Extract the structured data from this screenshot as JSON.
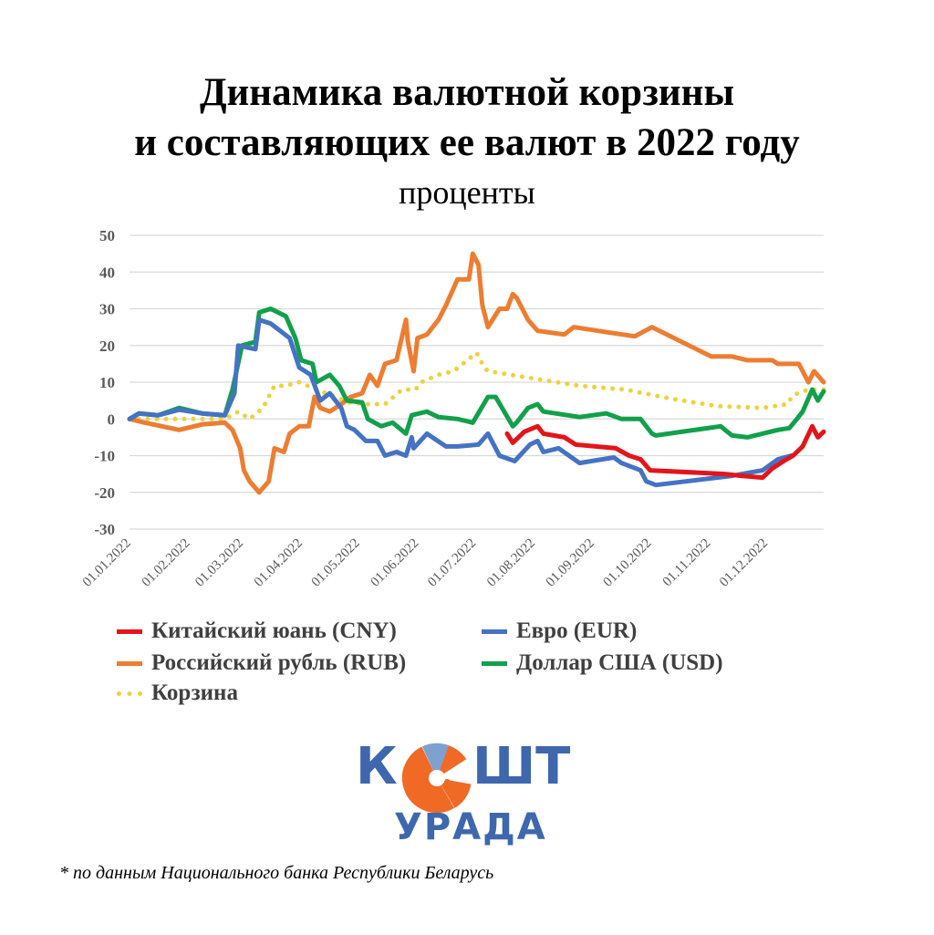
{
  "title_line1": "Динамика валютной корзины",
  "title_line2": "и составляющих ее валют в 2022 году",
  "subtitle": "проценты",
  "colors": {
    "CNY": "#e3151a",
    "EUR": "#4472c4",
    "RUB": "#ed7d31",
    "USD": "#12a04b",
    "basket": "#f0d13c",
    "grid": "#d9d9d9",
    "text": "#595959",
    "logo_blue": "#3e67ad",
    "logo_orange": "#f06a25"
  },
  "chart_data": {
    "type": "line",
    "title": "Динамика валютной корзины и составляющих ее валют в 2022 году",
    "ylabel": "проценты",
    "ylim": [
      -30,
      50
    ],
    "yticks": [
      "50",
      "40",
      "30",
      "20",
      "10",
      "0",
      "-10",
      "-20",
      "-30"
    ],
    "xlim": [
      "01.01.2022",
      "31.12.2022"
    ],
    "xticks": [
      "01.01.2022",
      "01.02.2022",
      "01.03.2022",
      "01.04.2022",
      "01.05.2022",
      "01.06.2022",
      "01.07.2022",
      "01.08.2022",
      "01.09.2022",
      "01.10.2022",
      "01.11.2022",
      "01.12.2022"
    ],
    "grid": true,
    "legend_position": "bottom",
    "series": [
      {
        "name": "Китайский юань (CNY)",
        "key": "CNY",
        "style": "solid",
        "points": [
          [
            "18.07.2022",
            -4
          ],
          [
            "21.07.2022",
            -6.5
          ],
          [
            "27.07.2022",
            -3.5
          ],
          [
            "03.08.2022",
            -2
          ],
          [
            "06.08.2022",
            -4
          ],
          [
            "17.08.2022",
            -5
          ],
          [
            "23.08.2022",
            -7
          ],
          [
            "13.09.2022",
            -8
          ],
          [
            "20.09.2022",
            -10
          ],
          [
            "26.09.2022",
            -11
          ],
          [
            "01.10.2022",
            -14
          ],
          [
            "09.11.2022",
            -15
          ],
          [
            "18.11.2022",
            -15.5
          ],
          [
            "29.11.2022",
            -16
          ],
          [
            "04.12.2022",
            -13.5
          ],
          [
            "10.12.2022",
            -11.5
          ],
          [
            "15.12.2022",
            -10
          ],
          [
            "20.12.2022",
            -7.5
          ],
          [
            "25.12.2022",
            -2
          ],
          [
            "28.12.2022",
            -5
          ],
          [
            "31.12.2022",
            -3.5
          ]
        ]
      },
      {
        "name": "Евро (EUR)",
        "key": "EUR",
        "style": "solid",
        "points": [
          [
            "01.01.2022",
            0
          ],
          [
            "06.01.2022",
            1.5
          ],
          [
            "16.01.2022",
            1
          ],
          [
            "27.01.2022",
            2.5
          ],
          [
            "08.02.2022",
            1.5
          ],
          [
            "20.02.2022",
            1
          ],
          [
            "25.02.2022",
            7
          ],
          [
            "27.02.2022",
            20
          ],
          [
            "08.03.2022",
            19
          ],
          [
            "10.03.2022",
            27
          ],
          [
            "16.03.2022",
            26
          ],
          [
            "26.03.2022",
            22
          ],
          [
            "31.03.2022",
            14
          ],
          [
            "06.04.2022",
            12
          ],
          [
            "11.04.2022",
            5
          ],
          [
            "16.04.2022",
            7
          ],
          [
            "22.04.2022",
            3
          ],
          [
            "25.04.2022",
            -2
          ],
          [
            "29.04.2022",
            -3
          ],
          [
            "05.05.2022",
            -6
          ],
          [
            "11.05.2022",
            -6
          ],
          [
            "15.05.2022",
            -10
          ],
          [
            "21.05.2022",
            -9
          ],
          [
            "26.05.2022",
            -10
          ],
          [
            "29.05.2022",
            -5
          ],
          [
            "30.05.2022",
            -8
          ],
          [
            "06.06.2022",
            -4
          ],
          [
            "16.06.2022",
            -7.5
          ],
          [
            "22.06.2022",
            -7.5
          ],
          [
            "03.07.2022",
            -7
          ],
          [
            "08.07.2022",
            -4
          ],
          [
            "14.07.2022",
            -10
          ],
          [
            "22.07.2022",
            -11.5
          ],
          [
            "30.07.2022",
            -7
          ],
          [
            "03.08.2022",
            -6
          ],
          [
            "06.08.2022",
            -9
          ],
          [
            "14.08.2022",
            -8
          ],
          [
            "25.08.2022",
            -12
          ],
          [
            "12.09.2022",
            -10.5
          ],
          [
            "16.09.2022",
            -12
          ],
          [
            "26.09.2022",
            -14
          ],
          [
            "29.09.2022",
            -17
          ],
          [
            "04.10.2022",
            -18
          ],
          [
            "13.11.2022",
            -15.5
          ],
          [
            "29.11.2022",
            -14
          ],
          [
            "07.12.2022",
            -11
          ],
          [
            "14.12.2022",
            -10
          ]
        ]
      },
      {
        "name": "Российский рубль (RUB)",
        "key": "RUB",
        "style": "solid",
        "points": [
          [
            "01.01.2022",
            0
          ],
          [
            "09.01.2022",
            -1
          ],
          [
            "27.01.2022",
            -3
          ],
          [
            "08.02.2022",
            -1.5
          ],
          [
            "20.02.2022",
            -1
          ],
          [
            "24.02.2022",
            -3
          ],
          [
            "28.02.2022",
            -8
          ],
          [
            "02.03.2022",
            -14
          ],
          [
            "05.03.2022",
            -17
          ],
          [
            "10.03.2022",
            -20
          ],
          [
            "15.03.2022",
            -17
          ],
          [
            "18.03.2022",
            -8
          ],
          [
            "23.03.2022",
            -9
          ],
          [
            "26.03.2022",
            -4
          ],
          [
            "31.03.2022",
            -2
          ],
          [
            "05.04.2022",
            -2
          ],
          [
            "08.04.2022",
            6
          ],
          [
            "11.04.2022",
            3
          ],
          [
            "16.04.2022",
            2
          ],
          [
            "22.04.2022",
            4
          ],
          [
            "27.04.2022",
            6
          ],
          [
            "03.05.2022",
            7
          ],
          [
            "07.05.2022",
            12
          ],
          [
            "11.05.2022",
            9
          ],
          [
            "15.05.2022",
            15
          ],
          [
            "21.05.2022",
            16
          ],
          [
            "26.05.2022",
            27
          ],
          [
            "27.05.2022",
            21
          ],
          [
            "30.05.2022",
            13
          ],
          [
            "01.06.2022",
            22
          ],
          [
            "06.06.2022",
            23
          ],
          [
            "12.06.2022",
            27
          ],
          [
            "16.06.2022",
            31
          ],
          [
            "22.06.2022",
            38
          ],
          [
            "28.06.2022",
            38
          ],
          [
            "30.06.2022",
            45
          ],
          [
            "03.07.2022",
            42
          ],
          [
            "05.07.2022",
            31
          ],
          [
            "08.07.2022",
            25
          ],
          [
            "14.07.2022",
            30
          ],
          [
            "18.07.2022",
            30
          ],
          [
            "21.07.2022",
            34
          ],
          [
            "23.07.2022",
            33
          ],
          [
            "29.07.2022",
            27
          ],
          [
            "03.08.2022",
            24
          ],
          [
            "17.08.2022",
            23
          ],
          [
            "22.08.2022",
            25
          ],
          [
            "10.09.2022",
            23.5
          ],
          [
            "23.09.2022",
            22.5
          ],
          [
            "02.10.2022",
            25
          ],
          [
            "02.11.2022",
            17
          ],
          [
            "13.11.2022",
            17
          ],
          [
            "21.11.2022",
            16
          ],
          [
            "04.12.2022",
            16
          ],
          [
            "07.12.2022",
            15
          ],
          [
            "18.12.2022",
            15
          ],
          [
            "23.12.2022",
            10
          ],
          [
            "26.12.2022",
            13
          ],
          [
            "31.12.2022",
            10
          ]
        ]
      },
      {
        "name": "Доллар США (USD)",
        "key": "USD",
        "style": "solid",
        "points": [
          [
            "01.01.2022",
            0
          ],
          [
            "06.01.2022",
            1.5
          ],
          [
            "16.01.2022",
            1
          ],
          [
            "27.01.2022",
            3
          ],
          [
            "08.02.2022",
            1.5
          ],
          [
            "20.02.2022",
            1
          ],
          [
            "24.02.2022",
            8
          ],
          [
            "01.03.2022",
            20
          ],
          [
            "08.03.2022",
            21
          ],
          [
            "10.03.2022",
            29
          ],
          [
            "16.03.2022",
            30
          ],
          [
            "24.03.2022",
            28
          ],
          [
            "29.03.2022",
            22
          ],
          [
            "01.04.2022",
            16
          ],
          [
            "07.04.2022",
            15
          ],
          [
            "09.04.2022",
            10
          ],
          [
            "16.04.2022",
            12
          ],
          [
            "21.04.2022",
            9
          ],
          [
            "25.04.2022",
            5
          ],
          [
            "03.05.2022",
            4.5
          ],
          [
            "06.05.2022",
            0
          ],
          [
            "13.05.2022",
            -2
          ],
          [
            "19.05.2022",
            -1
          ],
          [
            "26.05.2022",
            -4
          ],
          [
            "29.05.2022",
            1
          ],
          [
            "06.06.2022",
            2
          ],
          [
            "12.06.2022",
            0.5
          ],
          [
            "22.06.2022",
            0
          ],
          [
            "30.06.2022",
            -1
          ],
          [
            "08.07.2022",
            6
          ],
          [
            "12.07.2022",
            6
          ],
          [
            "21.07.2022",
            -2
          ],
          [
            "23.07.2022",
            -1
          ],
          [
            "29.07.2022",
            3
          ],
          [
            "03.08.2022",
            4
          ],
          [
            "06.08.2022",
            2
          ],
          [
            "25.08.2022",
            0.5
          ],
          [
            "08.09.2022",
            1.5
          ],
          [
            "16.09.2022",
            0
          ],
          [
            "26.09.2022",
            0
          ],
          [
            "02.10.2022",
            -4
          ],
          [
            "04.10.2022",
            -4.5
          ],
          [
            "07.11.2022",
            -2
          ],
          [
            "13.11.2022",
            -4.5
          ],
          [
            "21.11.2022",
            -5
          ],
          [
            "07.12.2022",
            -3
          ],
          [
            "13.12.2022",
            -2.5
          ],
          [
            "17.12.2022",
            0
          ],
          [
            "20.12.2022",
            2
          ],
          [
            "25.12.2022",
            8
          ],
          [
            "28.12.2022",
            5
          ],
          [
            "31.12.2022",
            7.5
          ]
        ]
      },
      {
        "name": "Корзина",
        "key": "basket",
        "style": "dotted",
        "points": [
          [
            "01.01.2022",
            0
          ],
          [
            "27.01.2022",
            0
          ],
          [
            "20.02.2022",
            0
          ],
          [
            "27.02.2022",
            2
          ],
          [
            "05.03.2022",
            0
          ],
          [
            "12.03.2022",
            3
          ],
          [
            "18.03.2022",
            9
          ],
          [
            "24.03.2022",
            9
          ],
          [
            "31.03.2022",
            10
          ],
          [
            "09.04.2022",
            8
          ],
          [
            "19.04.2022",
            6
          ],
          [
            "25.04.2022",
            4.5
          ],
          [
            "05.05.2022",
            4
          ],
          [
            "15.05.2022",
            4
          ],
          [
            "24.05.2022",
            8
          ],
          [
            "31.05.2022",
            8
          ],
          [
            "03.06.2022",
            10
          ],
          [
            "12.06.2022",
            12
          ],
          [
            "20.06.2022",
            13
          ],
          [
            "02.07.2022",
            18
          ],
          [
            "06.07.2022",
            14
          ],
          [
            "08.07.2022",
            13
          ],
          [
            "01.08.2022",
            11
          ],
          [
            "25.08.2022",
            9
          ],
          [
            "18.09.2022",
            8
          ],
          [
            "12.10.2022",
            5.5
          ],
          [
            "05.11.2022",
            3.5
          ],
          [
            "29.11.2022",
            3
          ],
          [
            "12.12.2022",
            4
          ],
          [
            "15.12.2022",
            6.5
          ],
          [
            "23.12.2022",
            8
          ],
          [
            "31.12.2022",
            8
          ]
        ]
      }
    ]
  },
  "logo": {
    "line1": "КОШТ",
    "line2": "УРАДА"
  },
  "footnote": "* по данным Национального банка Республики Беларусь"
}
